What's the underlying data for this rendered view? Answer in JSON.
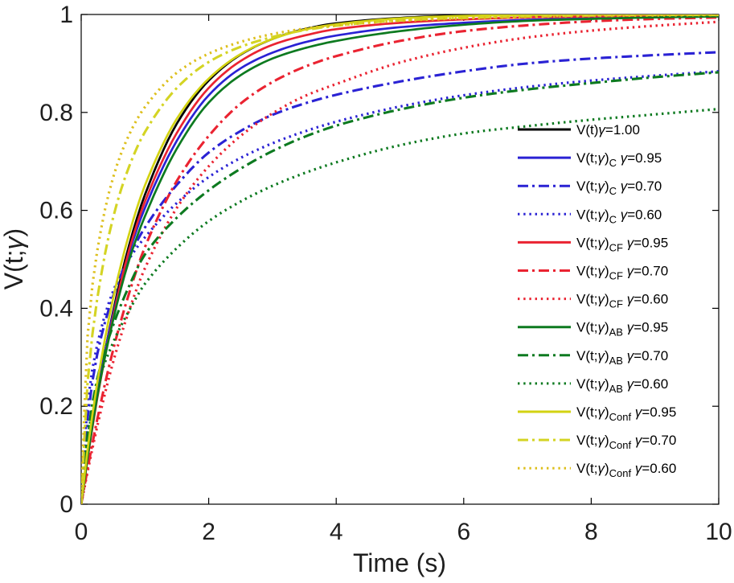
{
  "figure": {
    "background": "#ffffff",
    "axis_color": "#000000",
    "tick_label_color": "#1f1f1f"
  },
  "chart_data": {
    "type": "line",
    "title": "",
    "xlabel": "Time (s)",
    "ylabel": "V(t;γ)",
    "xlim": [
      0,
      10
    ],
    "ylim": [
      0,
      1
    ],
    "x_ticks": [
      0,
      2,
      4,
      6,
      8,
      10
    ],
    "y_ticks": [
      0,
      0.2,
      0.4,
      0.6,
      0.8,
      1
    ],
    "x_tick_labels": [
      "0",
      "2",
      "4",
      "6",
      "8",
      "10"
    ],
    "y_tick_labels": [
      "0",
      "0.2",
      "0.4",
      "0.6",
      "0.8",
      "1"
    ],
    "grid": false,
    "legend": {
      "position": "right-middle",
      "border": "none"
    },
    "x": [
      0,
      0.1,
      0.25,
      0.5,
      0.75,
      1,
      1.5,
      2,
      2.5,
      3,
      3.5,
      4,
      5,
      6,
      7,
      8,
      9,
      10
    ],
    "series": [
      {
        "id": "V1.00",
        "label": "V(t)γ=1.00",
        "label_base": "V(t)",
        "label_sub": "",
        "label_gamma": "γ=1.00",
        "color": "#000000",
        "style": "solid",
        "values": [
          0,
          0.095,
          0.221,
          0.393,
          0.528,
          0.632,
          0.777,
          0.865,
          0.918,
          0.95,
          0.97,
          0.982,
          0.993,
          0.998,
          0.999,
          1.0,
          1.0,
          1.0
        ]
      },
      {
        "id": "C0.95",
        "label": "V(t;γ)C γ=0.95",
        "label_base": "V(t;γ)",
        "label_sub": "C",
        "label_gamma": "γ=0.95",
        "color": "#2a22d4",
        "style": "solid",
        "values": [
          0,
          0.1,
          0.228,
          0.388,
          0.512,
          0.605,
          0.742,
          0.835,
          0.89,
          0.922,
          0.943,
          0.957,
          0.974,
          0.983,
          0.989,
          0.992,
          0.994,
          0.996
        ]
      },
      {
        "id": "C0.70",
        "label": "V(t;γ)C γ=0.70",
        "label_base": "V(t;γ)",
        "label_sub": "C",
        "label_gamma": "γ=0.70",
        "color": "#2a22d4",
        "style": "dashdot",
        "values": [
          0,
          0.175,
          0.305,
          0.425,
          0.505,
          0.565,
          0.652,
          0.718,
          0.762,
          0.795,
          0.818,
          0.836,
          0.863,
          0.884,
          0.9,
          0.91,
          0.917,
          0.923
        ]
      },
      {
        "id": "C0.60",
        "label": "V(t;γ)C γ=0.60",
        "label_base": "V(t;γ)",
        "label_sub": "C",
        "label_gamma": "γ=0.60",
        "color": "#2a22d4",
        "style": "dotted",
        "values": [
          0,
          0.205,
          0.325,
          0.435,
          0.5,
          0.545,
          0.615,
          0.668,
          0.707,
          0.737,
          0.761,
          0.781,
          0.812,
          0.835,
          0.852,
          0.865,
          0.875,
          0.884
        ]
      },
      {
        "id": "CF0.95",
        "label": "V(t;γ)CF γ=0.95",
        "label_base": "V(t;γ)",
        "label_sub": "CF",
        "label_gamma": "γ=0.95",
        "color": "#ea2331",
        "style": "solid",
        "values": [
          0,
          0.092,
          0.215,
          0.382,
          0.518,
          0.618,
          0.758,
          0.85,
          0.905,
          0.938,
          0.957,
          0.97,
          0.983,
          0.99,
          0.994,
          0.996,
          0.998,
          0.999
        ]
      },
      {
        "id": "CF0.70",
        "label": "V(t;γ)CF γ=0.70",
        "label_base": "V(t;γ)",
        "label_sub": "CF",
        "label_gamma": "γ=0.70",
        "color": "#ea2331",
        "style": "dashdot",
        "values": [
          0,
          0.072,
          0.172,
          0.315,
          0.43,
          0.525,
          0.66,
          0.752,
          0.818,
          0.862,
          0.893,
          0.915,
          0.946,
          0.966,
          0.978,
          0.986,
          0.991,
          0.994
        ]
      },
      {
        "id": "CF0.60",
        "label": "V(t;γ)CF γ=0.60",
        "label_base": "V(t;γ)",
        "label_sub": "CF",
        "label_gamma": "γ=0.60",
        "color": "#ea2331",
        "style": "dotted",
        "values": [
          0,
          0.066,
          0.158,
          0.29,
          0.395,
          0.482,
          0.605,
          0.69,
          0.752,
          0.798,
          0.833,
          0.858,
          0.902,
          0.932,
          0.953,
          0.967,
          0.977,
          0.985
        ]
      },
      {
        "id": "AB0.95",
        "label": "V(t;γ)AB γ=0.95",
        "label_base": "V(t;γ)",
        "label_sub": "AB",
        "label_gamma": "γ=0.95",
        "color": "#0d7a20",
        "style": "solid",
        "values": [
          0,
          0.096,
          0.218,
          0.376,
          0.498,
          0.588,
          0.726,
          0.82,
          0.876,
          0.91,
          0.931,
          0.946,
          0.966,
          0.979,
          0.987,
          0.991,
          0.994,
          0.996
        ]
      },
      {
        "id": "AB0.70",
        "label": "V(t;γ)AB γ=0.70",
        "label_base": "V(t;γ)",
        "label_sub": "AB",
        "label_gamma": "γ=0.70",
        "color": "#0d7a20",
        "style": "dashdot",
        "values": [
          0,
          0.14,
          0.255,
          0.365,
          0.445,
          0.51,
          0.585,
          0.641,
          0.685,
          0.721,
          0.75,
          0.773,
          0.806,
          0.83,
          0.847,
          0.86,
          0.872,
          0.882
        ]
      },
      {
        "id": "AB0.60",
        "label": "V(t;γ)AB γ=0.60",
        "label_base": "V(t;γ)",
        "label_sub": "AB",
        "label_gamma": "γ=0.60",
        "color": "#0d7a20",
        "style": "dotted",
        "values": [
          0,
          0.135,
          0.24,
          0.33,
          0.395,
          0.45,
          0.523,
          0.578,
          0.618,
          0.65,
          0.676,
          0.698,
          0.733,
          0.757,
          0.772,
          0.785,
          0.796,
          0.807
        ]
      },
      {
        "id": "Conf0.95",
        "label": "V(t;γ)Conf γ=0.95",
        "label_base": "V(t;γ)",
        "label_sub": "Conf",
        "label_gamma": "γ=0.95",
        "color": "#d3d312",
        "style": "solid",
        "values": [
          0,
          0.111,
          0.246,
          0.42,
          0.551,
          0.651,
          0.787,
          0.869,
          0.919,
          0.95,
          0.969,
          0.98,
          0.992,
          0.997,
          0.999,
          1.0,
          1.0,
          1.0
        ]
      },
      {
        "id": "Conf0.70",
        "label": "V(t;γ)Conf γ=0.70",
        "label_base": "V(t;γ)",
        "label_sub": "Conf",
        "label_gamma": "γ=0.70",
        "color": "#d4d424",
        "style": "dashdot",
        "values": [
          0,
          0.248,
          0.418,
          0.585,
          0.689,
          0.76,
          0.85,
          0.903,
          0.934,
          0.954,
          0.968,
          0.977,
          0.988,
          0.993,
          0.996,
          0.998,
          0.999,
          0.999
        ]
      },
      {
        "id": "Conf0.60",
        "label": "V(t;γ)Conf γ=0.60",
        "label_base": "V(t;γ)",
        "label_sub": "Conf",
        "label_gamma": "γ=0.60",
        "color": "#ddbf1c",
        "style": "dotted",
        "values": [
          0,
          0.342,
          0.516,
          0.667,
          0.754,
          0.811,
          0.881,
          0.92,
          0.944,
          0.96,
          0.971,
          0.978,
          0.987,
          0.992,
          0.995,
          0.997,
          0.998,
          0.999
        ]
      }
    ]
  }
}
